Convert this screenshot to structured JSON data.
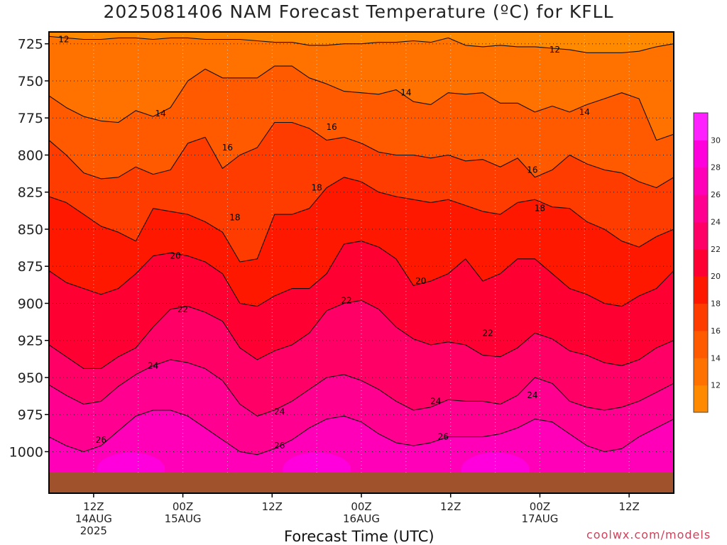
{
  "page": {
    "credit": "coolwx.com/models"
  },
  "chart_data": {
    "type": "heatmap",
    "title": "2025081406 NAM Forecast Temperature (ºC) for KFLL",
    "xlabel": "Forecast Time (UTC)",
    "ylabel": "",
    "y_axis": {
      "ticks": [
        725,
        750,
        775,
        800,
        825,
        850,
        875,
        900,
        925,
        950,
        975,
        1000
      ],
      "ylim": [
        1028,
        717
      ],
      "inverted": true,
      "unit": "hPa"
    },
    "x_axis": {
      "ticks": [
        {
          "t": 6,
          "lines": [
            "12Z",
            "14AUG",
            "2025"
          ]
        },
        {
          "t": 18,
          "lines": [
            "00Z",
            "15AUG"
          ]
        },
        {
          "t": 30,
          "lines": [
            "12Z"
          ]
        },
        {
          "t": 42,
          "lines": [
            "00Z",
            "16AUG"
          ]
        },
        {
          "t": 54,
          "lines": [
            "12Z"
          ]
        },
        {
          "t": 66,
          "lines": [
            "00Z",
            "17AUG"
          ]
        },
        {
          "t": 78,
          "lines": [
            "12Z"
          ]
        }
      ],
      "xlim": [
        0,
        84
      ]
    },
    "colorbar": {
      "levels": [
        12,
        14,
        16,
        18,
        20,
        22,
        24,
        26,
        28,
        30
      ],
      "colors": [
        "#ff8a00",
        "#ff7200",
        "#ff5a00",
        "#ff3c00",
        "#ff1800",
        "#ff0033",
        "#ff0066",
        "#ff0090",
        "#ff00b8",
        "#ff00dc",
        "#ff20ff"
      ]
    },
    "isotherms": [
      {
        "value": 12,
        "pressure": [
          720,
          721,
          722,
          722,
          721,
          721,
          722,
          721,
          721,
          722,
          722,
          722,
          723,
          724,
          724,
          726,
          726,
          725,
          725,
          724,
          724,
          723,
          724,
          721,
          726,
          727,
          726,
          727,
          727,
          728,
          729,
          731,
          731,
          731,
          730,
          727,
          725
        ]
      },
      {
        "value": 14,
        "pressure": [
          760,
          768,
          774,
          777,
          778,
          770,
          774,
          768,
          750,
          742,
          748,
          748,
          748,
          740,
          740,
          748,
          752,
          757,
          758,
          759,
          756,
          764,
          766,
          758,
          759,
          758,
          765,
          765,
          771,
          767,
          771,
          766,
          762,
          758,
          762,
          790,
          786
        ]
      },
      {
        "value": 16,
        "pressure": [
          790,
          800,
          812,
          816,
          815,
          808,
          813,
          810,
          792,
          788,
          809,
          800,
          795,
          778,
          778,
          782,
          790,
          788,
          792,
          798,
          800,
          800,
          802,
          800,
          804,
          803,
          808,
          802,
          815,
          810,
          800,
          806,
          810,
          812,
          818,
          822,
          815
        ]
      },
      {
        "value": 18,
        "pressure": [
          828,
          832,
          840,
          848,
          852,
          858,
          836,
          838,
          840,
          845,
          852,
          872,
          870,
          840,
          840,
          836,
          822,
          815,
          818,
          825,
          828,
          830,
          832,
          830,
          834,
          838,
          840,
          832,
          830,
          835,
          836,
          845,
          850,
          858,
          862,
          855,
          850
        ]
      },
      {
        "value": 20,
        "pressure": [
          878,
          886,
          890,
          894,
          890,
          880,
          868,
          866,
          868,
          872,
          880,
          900,
          902,
          895,
          890,
          890,
          880,
          860,
          858,
          862,
          870,
          888,
          885,
          880,
          870,
          885,
          880,
          870,
          870,
          880,
          890,
          894,
          900,
          902,
          895,
          890,
          878
        ]
      },
      {
        "value": 22,
        "pressure": [
          928,
          936,
          944,
          944,
          936,
          930,
          916,
          904,
          902,
          906,
          912,
          930,
          938,
          932,
          928,
          920,
          905,
          900,
          898,
          904,
          916,
          924,
          928,
          926,
          928,
          935,
          936,
          930,
          920,
          924,
          932,
          935,
          940,
          942,
          938,
          930,
          925
        ]
      },
      {
        "value": 24,
        "pressure": [
          955,
          962,
          968,
          966,
          956,
          948,
          942,
          938,
          940,
          944,
          952,
          968,
          976,
          972,
          966,
          958,
          950,
          948,
          952,
          958,
          966,
          972,
          970,
          965,
          966,
          966,
          968,
          962,
          950,
          954,
          966,
          970,
          972,
          970,
          966,
          960,
          954
        ]
      },
      {
        "value": 26,
        "pressure": [
          990,
          996,
          1000,
          996,
          986,
          976,
          972,
          972,
          976,
          984,
          992,
          1000,
          1002,
          998,
          992,
          984,
          978,
          976,
          980,
          988,
          994,
          996,
          994,
          990,
          990,
          990,
          988,
          984,
          978,
          980,
          988,
          996,
          1000,
          998,
          990,
          984,
          978
        ]
      }
    ],
    "isotherm_times": [
      0,
      2.33,
      4.67,
      7,
      9.33,
      11.67,
      14,
      16.33,
      18.67,
      21,
      23.33,
      25.67,
      28,
      30.33,
      32.67,
      35,
      37.33,
      39.67,
      42,
      44.33,
      46.67,
      49,
      51.33,
      53.67,
      56,
      58.33,
      60.67,
      63,
      65.33,
      67.67,
      70,
      72.33,
      74.67,
      77,
      79.33,
      81.67,
      84
    ],
    "contour_labels": [
      {
        "value": 12,
        "t": 2,
        "p": 722
      },
      {
        "value": 12,
        "t": 68,
        "p": 729
      },
      {
        "value": 14,
        "t": 15,
        "p": 772
      },
      {
        "value": 14,
        "t": 48,
        "p": 758
      },
      {
        "value": 14,
        "t": 72,
        "p": 771
      },
      {
        "value": 16,
        "t": 24,
        "p": 795
      },
      {
        "value": 16,
        "t": 38,
        "p": 781
      },
      {
        "value": 16,
        "t": 65,
        "p": 810
      },
      {
        "value": 18,
        "t": 25,
        "p": 842
      },
      {
        "value": 18,
        "t": 36,
        "p": 822
      },
      {
        "value": 18,
        "t": 66,
        "p": 836
      },
      {
        "value": 20,
        "t": 17,
        "p": 868
      },
      {
        "value": 20,
        "t": 50,
        "p": 885
      },
      {
        "value": 22,
        "t": 18,
        "p": 904
      },
      {
        "value": 22,
        "t": 40,
        "p": 898
      },
      {
        "value": 22,
        "t": 59,
        "p": 920
      },
      {
        "value": 24,
        "t": 14,
        "p": 942
      },
      {
        "value": 24,
        "t": 31,
        "p": 973
      },
      {
        "value": 24,
        "t": 52,
        "p": 966
      },
      {
        "value": 24,
        "t": 65,
        "p": 962
      },
      {
        "value": 26,
        "t": 7,
        "p": 992
      },
      {
        "value": 26,
        "t": 31,
        "p": 996
      },
      {
        "value": 26,
        "t": 53,
        "p": 990
      }
    ],
    "surface_pressure": 1014,
    "surface_color": "#a0522d"
  }
}
